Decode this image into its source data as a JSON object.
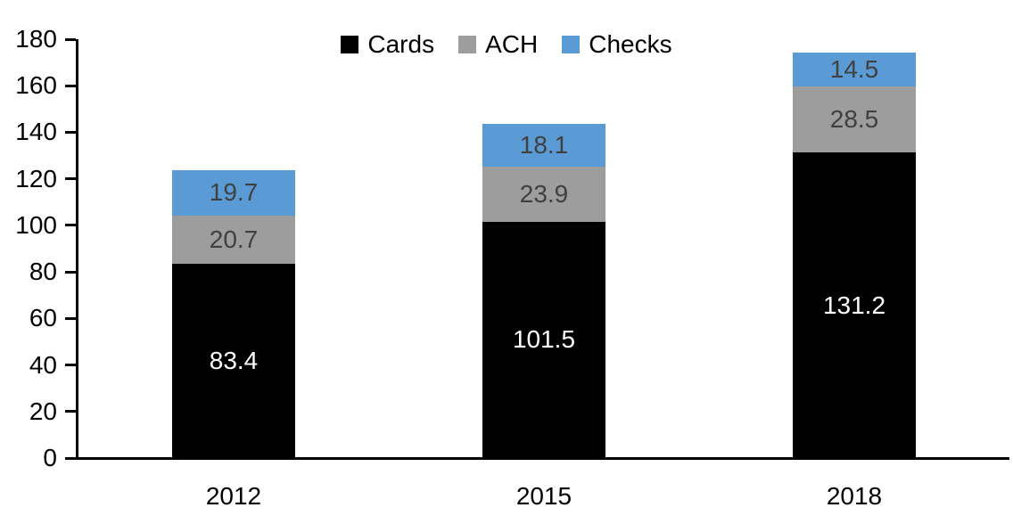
{
  "chart_data": {
    "type": "bar",
    "stacked": true,
    "title": "",
    "xlabel": "",
    "ylabel": "",
    "categories": [
      "2012",
      "2015",
      "2018"
    ],
    "series": [
      {
        "name": "Cards",
        "values": [
          83.4,
          101.5,
          131.2
        ],
        "color": "#000000",
        "label_color": "#ffffff"
      },
      {
        "name": "ACH",
        "values": [
          20.7,
          23.9,
          28.5
        ],
        "color": "#9d9d9d",
        "label_color": "#404040"
      },
      {
        "name": "Checks",
        "values": [
          19.7,
          18.1,
          14.5
        ],
        "color": "#5b9bd5",
        "label_color": "#404040"
      }
    ],
    "ylim": [
      0,
      180
    ],
    "ytick_step": 20,
    "ytick_labels": [
      "0",
      "20",
      "40",
      "60",
      "80",
      "100",
      "120",
      "140",
      "160",
      "180"
    ],
    "legend": {
      "position": "top",
      "entries": [
        "Cards",
        "ACH",
        "Checks"
      ]
    },
    "grid": false,
    "data_labels": true,
    "axis_color": "#000000"
  }
}
